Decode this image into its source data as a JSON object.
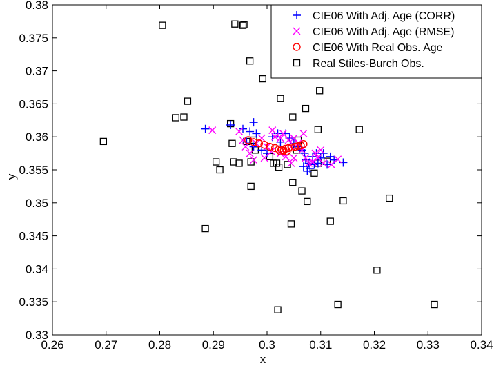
{
  "chart_data": {
    "type": "scatter",
    "xlabel": "x",
    "ylabel": "y",
    "xlim": [
      0.26,
      0.34
    ],
    "ylim": [
      0.33,
      0.38
    ],
    "xticks": [
      "0.26",
      "0.27",
      "0.28",
      "0.29",
      "0.3",
      "0.31",
      "0.32",
      "0.33",
      "0.34"
    ],
    "yticks": [
      "0.33",
      "0.335",
      "0.34",
      "0.345",
      "0.35",
      "0.355",
      "0.36",
      "0.365",
      "0.37",
      "0.375",
      "0.38"
    ],
    "grid": false,
    "legend_position": "top-right",
    "series": [
      {
        "name": "CIE06 With Adj. Age (CORR)",
        "marker": "plus",
        "color": "#0000ff",
        "points": [
          [
            0.2885,
            0.3612
          ],
          [
            0.2932,
            0.3618
          ],
          [
            0.2955,
            0.3612
          ],
          [
            0.2968,
            0.3608
          ],
          [
            0.2975,
            0.3622
          ],
          [
            0.298,
            0.3605
          ],
          [
            0.2962,
            0.3592
          ],
          [
            0.2975,
            0.3585
          ],
          [
            0.299,
            0.358
          ],
          [
            0.301,
            0.36
          ],
          [
            0.3025,
            0.3592
          ],
          [
            0.3035,
            0.3605
          ],
          [
            0.3042,
            0.3598
          ],
          [
            0.305,
            0.359
          ],
          [
            0.3058,
            0.3585
          ],
          [
            0.3065,
            0.358
          ],
          [
            0.307,
            0.3575
          ],
          [
            0.3072,
            0.3565
          ],
          [
            0.3078,
            0.356
          ],
          [
            0.308,
            0.3552
          ],
          [
            0.3085,
            0.357
          ],
          [
            0.3088,
            0.3558
          ],
          [
            0.3092,
            0.3575
          ],
          [
            0.3095,
            0.356
          ],
          [
            0.31,
            0.3568
          ],
          [
            0.3105,
            0.3575
          ],
          [
            0.3112,
            0.3558
          ],
          [
            0.3118,
            0.357
          ],
          [
            0.3125,
            0.3565
          ],
          [
            0.3142,
            0.3561
          ],
          [
            0.3068,
            0.3555
          ],
          [
            0.3075,
            0.3548
          ],
          [
            0.302,
            0.3605
          ],
          [
            0.3,
            0.3575
          ]
        ]
      },
      {
        "name": "CIE06 With Adj. Age (RMSE)",
        "marker": "x",
        "color": "#ff00ff",
        "points": [
          [
            0.2898,
            0.361
          ],
          [
            0.2948,
            0.3608
          ],
          [
            0.2955,
            0.3595
          ],
          [
            0.296,
            0.3585
          ],
          [
            0.2968,
            0.3575
          ],
          [
            0.2975,
            0.3565
          ],
          [
            0.298,
            0.359
          ],
          [
            0.299,
            0.3598
          ],
          [
            0.3,
            0.3585
          ],
          [
            0.301,
            0.361
          ],
          [
            0.3015,
            0.36
          ],
          [
            0.3025,
            0.3598
          ],
          [
            0.303,
            0.3605
          ],
          [
            0.304,
            0.3595
          ],
          [
            0.3045,
            0.3585
          ],
          [
            0.305,
            0.3598
          ],
          [
            0.3058,
            0.359
          ],
          [
            0.3065,
            0.358
          ],
          [
            0.3068,
            0.3605
          ],
          [
            0.3072,
            0.3568
          ],
          [
            0.3078,
            0.356
          ],
          [
            0.3085,
            0.3562
          ],
          [
            0.309,
            0.3575
          ],
          [
            0.3095,
            0.3568
          ],
          [
            0.31,
            0.358
          ],
          [
            0.3105,
            0.356
          ],
          [
            0.312,
            0.3558
          ],
          [
            0.3132,
            0.3566
          ],
          [
            0.305,
            0.3568
          ],
          [
            0.3045,
            0.356
          ],
          [
            0.3035,
            0.357
          ],
          [
            0.3025,
            0.3575
          ],
          [
            0.2995,
            0.3568
          ],
          [
            0.3008,
            0.3578
          ]
        ]
      },
      {
        "name": "CIE06 With Real Obs. Age",
        "marker": "circle",
        "color": "#ff0000",
        "points": [
          [
            0.2965,
            0.3595
          ],
          [
            0.2975,
            0.3592
          ],
          [
            0.2985,
            0.359
          ],
          [
            0.2995,
            0.3588
          ],
          [
            0.3005,
            0.3585
          ],
          [
            0.3015,
            0.3583
          ],
          [
            0.3022,
            0.3581
          ],
          [
            0.3028,
            0.358
          ],
          [
            0.3034,
            0.3582
          ],
          [
            0.304,
            0.3583
          ],
          [
            0.3046,
            0.3584
          ],
          [
            0.3052,
            0.3585
          ],
          [
            0.3058,
            0.3586
          ],
          [
            0.3063,
            0.3587
          ],
          [
            0.3068,
            0.3589
          ],
          [
            0.3025,
            0.3578
          ],
          [
            0.3031,
            0.3579
          ],
          [
            0.3037,
            0.3578
          ]
        ]
      },
      {
        "name": "Real Stiles-Burch Obs.",
        "marker": "square",
        "color": "#000000",
        "points": [
          [
            0.2695,
            0.3593
          ],
          [
            0.2805,
            0.3769
          ],
          [
            0.283,
            0.3629
          ],
          [
            0.2845,
            0.363
          ],
          [
            0.2852,
            0.3654
          ],
          [
            0.2885,
            0.3461
          ],
          [
            0.2905,
            0.3562
          ],
          [
            0.2912,
            0.355
          ],
          [
            0.2932,
            0.362
          ],
          [
            0.2935,
            0.359
          ],
          [
            0.2938,
            0.3562
          ],
          [
            0.294,
            0.3771
          ],
          [
            0.2948,
            0.356
          ],
          [
            0.2955,
            0.3769
          ],
          [
            0.2957,
            0.377
          ],
          [
            0.2962,
            0.3593
          ],
          [
            0.2968,
            0.3715
          ],
          [
            0.297,
            0.3525
          ],
          [
            0.297,
            0.3562
          ],
          [
            0.2975,
            0.3595
          ],
          [
            0.2978,
            0.358
          ],
          [
            0.2992,
            0.3688
          ],
          [
            0.3005,
            0.357
          ],
          [
            0.3012,
            0.356
          ],
          [
            0.3018,
            0.356
          ],
          [
            0.302,
            0.3338
          ],
          [
            0.3022,
            0.3554
          ],
          [
            0.3025,
            0.3658
          ],
          [
            0.3038,
            0.3558
          ],
          [
            0.3045,
            0.3468
          ],
          [
            0.3048,
            0.363
          ],
          [
            0.3048,
            0.3531
          ],
          [
            0.3055,
            0.358
          ],
          [
            0.3058,
            0.3595
          ],
          [
            0.3065,
            0.3518
          ],
          [
            0.3072,
            0.3643
          ],
          [
            0.3075,
            0.3502
          ],
          [
            0.3088,
            0.3545
          ],
          [
            0.3095,
            0.356
          ],
          [
            0.3095,
            0.3611
          ],
          [
            0.3098,
            0.367
          ],
          [
            0.3112,
            0.3563
          ],
          [
            0.3118,
            0.3472
          ],
          [
            0.3132,
            0.3346
          ],
          [
            0.3142,
            0.3503
          ],
          [
            0.3172,
            0.3611
          ],
          [
            0.3205,
            0.3398
          ],
          [
            0.3228,
            0.3507
          ],
          [
            0.3312,
            0.3346
          ]
        ]
      }
    ]
  }
}
